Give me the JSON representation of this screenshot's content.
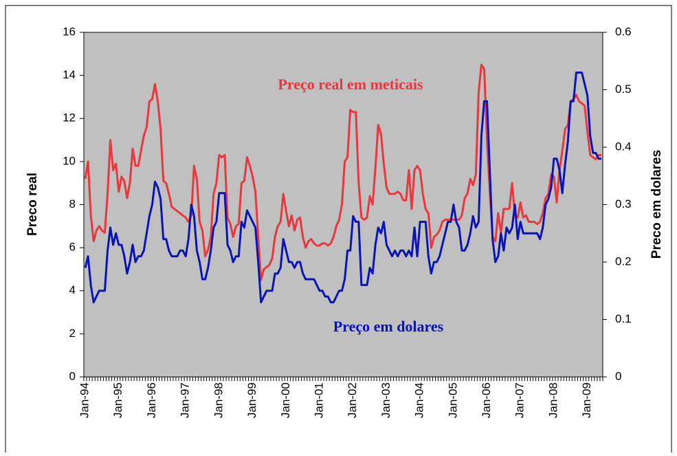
{
  "chart_data": {
    "type": "line",
    "y_label": "Preco real",
    "y2_label": "Preco em dolares",
    "annotations": [
      "Preço real em meticais",
      "Preço em dolares"
    ],
    "categories": [
      "Jan-94",
      null,
      null,
      null,
      null,
      null,
      null,
      null,
      null,
      null,
      null,
      null,
      "Jan-95",
      null,
      null,
      null,
      null,
      null,
      null,
      null,
      null,
      null,
      null,
      null,
      "Jan-96",
      null,
      null,
      null,
      null,
      null,
      null,
      null,
      null,
      null,
      null,
      null,
      "Jan-97",
      null,
      null,
      null,
      null,
      null,
      null,
      null,
      null,
      null,
      null,
      null,
      "Jan-98",
      null,
      null,
      null,
      null,
      null,
      null,
      null,
      null,
      null,
      null,
      null,
      "Jan-99",
      null,
      null,
      null,
      null,
      null,
      null,
      null,
      null,
      null,
      null,
      null,
      "Jan-00",
      null,
      null,
      null,
      null,
      null,
      null,
      null,
      null,
      null,
      null,
      null,
      "Jan-01",
      null,
      null,
      null,
      null,
      null,
      null,
      null,
      null,
      null,
      null,
      null,
      "Jan-02",
      null,
      null,
      null,
      null,
      null,
      null,
      null,
      null,
      null,
      null,
      null,
      "Jan-03",
      null,
      null,
      null,
      null,
      null,
      null,
      null,
      null,
      null,
      null,
      null,
      "Jan-04",
      null,
      null,
      null,
      null,
      null,
      null,
      null,
      null,
      null,
      null,
      null,
      "Jan-05",
      null,
      null,
      null,
      null,
      null,
      null,
      null,
      null,
      null,
      null,
      null,
      "Jan-06",
      null,
      null,
      null,
      null,
      null,
      null,
      null,
      null,
      null,
      null,
      null,
      "Jan-07",
      null,
      null,
      null,
      null,
      null,
      null,
      null,
      null,
      null,
      null,
      null,
      "Jan-08",
      null,
      null,
      null,
      null,
      null,
      null,
      null,
      null,
      null,
      null,
      null,
      "Jan-09",
      null,
      null,
      null,
      null,
      null
    ],
    "series": [
      {
        "name": "Preço real em meticais",
        "color": "#e8383d",
        "values": [
          9.2,
          10,
          7.5,
          6.3,
          6.8,
          7,
          6.8,
          6.7,
          8.5,
          11,
          9.6,
          9.9,
          8.6,
          9.3,
          9.1,
          8.3,
          9,
          10.6,
          9.8,
          9.8,
          10.5,
          11.2,
          11.6,
          12.8,
          12.9,
          13.6,
          12.8,
          11.5,
          9.1,
          9,
          8.5,
          7.9,
          7.8,
          7.7,
          7.6,
          7.5,
          7.4,
          7.2,
          7.5,
          9.8,
          9.2,
          7.2,
          6.8,
          5.6,
          5.9,
          6.5,
          8.5,
          9,
          10.3,
          10.2,
          10.3,
          7.4,
          7.1,
          6.5,
          7,
          7.1,
          9,
          9.1,
          10.2,
          9.8,
          9.3,
          8.6,
          6.5,
          4.5,
          5,
          5.1,
          5.2,
          5.5,
          6.5,
          7,
          7.2,
          8.5,
          7.7,
          7,
          7.5,
          6.8,
          7.3,
          7.4,
          6.5,
          6,
          6.3,
          6.4,
          6.2,
          6.1,
          6.1,
          6.2,
          6.2,
          6.1,
          6.2,
          6.5,
          7,
          7.3,
          8,
          10,
          10.2,
          12.4,
          12.3,
          12.3,
          9,
          7.4,
          7.3,
          7.4,
          8.4,
          8,
          9.7,
          11.7,
          11.3,
          9.9,
          8.8,
          8.5,
          8.5,
          8.5,
          8.6,
          8.5,
          8.2,
          8.2,
          9.6,
          7.8,
          9.6,
          9.8,
          9.6,
          8.5,
          7.8,
          7.6,
          6,
          6.5,
          6.6,
          6.8,
          7.2,
          7.3,
          7.3,
          7.3,
          7.3,
          7.3,
          7.3,
          7.5,
          8.3,
          8.5,
          9.2,
          8.9,
          9.4,
          13.2,
          14.5,
          14.3,
          11,
          8.6,
          6.5,
          6.3,
          7.6,
          6.7,
          7.8,
          7.8,
          7.8,
          9,
          7.5,
          7.4,
          8.1,
          7.4,
          7.5,
          7.2,
          7.2,
          7.2,
          7.1,
          7.2,
          7.6,
          8.3,
          8.5,
          9.4,
          9.3,
          8.1,
          9.6,
          10.5,
          11.5,
          11.7,
          12.8,
          12.9,
          13.1,
          12.8,
          12.7,
          12.6,
          11.4,
          10.3,
          10.2,
          10.1,
          10.3,
          10.3
        ]
      },
      {
        "name": "Preço em dolares",
        "color": "#0a14b4",
        "axis": "y2",
        "values": [
          0.19,
          0.21,
          0.16,
          0.13,
          0.14,
          0.15,
          0.15,
          0.15,
          0.22,
          0.26,
          0.23,
          0.25,
          0.23,
          0.23,
          0.21,
          0.18,
          0.2,
          0.23,
          0.2,
          0.21,
          0.21,
          0.22,
          0.25,
          0.28,
          0.3,
          0.34,
          0.33,
          0.31,
          0.24,
          0.24,
          0.22,
          0.21,
          0.21,
          0.21,
          0.22,
          0.22,
          0.21,
          0.24,
          0.3,
          0.28,
          0.22,
          0.2,
          0.17,
          0.17,
          0.19,
          0.22,
          0.26,
          0.27,
          0.32,
          0.32,
          0.32,
          0.23,
          0.22,
          0.2,
          0.21,
          0.21,
          0.27,
          0.26,
          0.29,
          0.28,
          0.27,
          0.26,
          0.2,
          0.13,
          0.14,
          0.15,
          0.15,
          0.15,
          0.18,
          0.18,
          0.19,
          0.24,
          0.22,
          0.2,
          0.2,
          0.19,
          0.2,
          0.2,
          0.18,
          0.17,
          0.17,
          0.17,
          0.17,
          0.16,
          0.15,
          0.15,
          0.14,
          0.14,
          0.13,
          0.13,
          0.14,
          0.15,
          0.15,
          0.17,
          0.22,
          0.22,
          0.28,
          0.27,
          0.27,
          0.16,
          0.16,
          0.16,
          0.19,
          0.18,
          0.23,
          0.26,
          0.25,
          0.27,
          0.23,
          0.22,
          0.21,
          0.22,
          0.21,
          0.22,
          0.22,
          0.21,
          0.22,
          0.21,
          0.26,
          0.21,
          0.27,
          0.27,
          0.27,
          0.21,
          0.18,
          0.2,
          0.2,
          0.21,
          0.23,
          0.25,
          0.27,
          0.27,
          0.3,
          0.27,
          0.26,
          0.22,
          0.22,
          0.23,
          0.25,
          0.28,
          0.26,
          0.27,
          0.42,
          0.48,
          0.48,
          0.36,
          0.24,
          0.2,
          0.21,
          0.25,
          0.22,
          0.26,
          0.25,
          0.26,
          0.3,
          0.24,
          0.27,
          0.25,
          0.25,
          0.25,
          0.25,
          0.25,
          0.25,
          0.24,
          0.26,
          0.3,
          0.31,
          0.33,
          0.38,
          0.38,
          0.36,
          0.32,
          0.37,
          0.41,
          0.48,
          0.48,
          0.53,
          0.53,
          0.53,
          0.51,
          0.49,
          0.42,
          0.39,
          0.39,
          0.38,
          0.38
        ]
      }
    ],
    "ylim": [
      0,
      16
    ],
    "yticks": [
      0,
      2,
      4,
      6,
      8,
      10,
      12,
      14,
      16
    ],
    "y2lim": [
      0,
      0.6
    ],
    "y2ticks": [
      0,
      0.1,
      0.2,
      0.3,
      0.4,
      0.5,
      0.6
    ],
    "background": "#c0c0c0"
  }
}
